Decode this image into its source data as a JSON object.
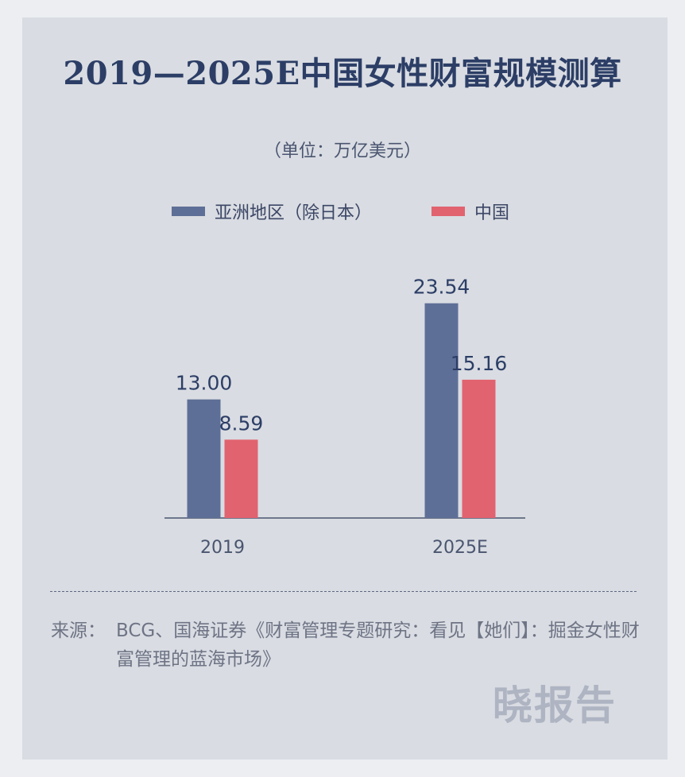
{
  "title": "2019—2025E中国女性财富规模测算",
  "unit": "（单位：万亿美元）",
  "legend": [
    {
      "label": "亚洲地区（除日本）",
      "color": "#5e6f97"
    },
    {
      "label": "中国",
      "color": "#e1636f"
    }
  ],
  "chart_data": {
    "type": "bar",
    "title": "2019—2025E中国女性财富规模测算",
    "categories": [
      "2019",
      "2025E"
    ],
    "series": [
      {
        "name": "亚洲地区（除日本）",
        "values": [
          13.0,
          23.54
        ],
        "labels": [
          "13.00",
          "23.54"
        ],
        "color": "#5e6f97"
      },
      {
        "name": "中国",
        "values": [
          8.59,
          15.16
        ],
        "labels": [
          "8.59",
          "15.16"
        ],
        "color": "#e1636f"
      }
    ],
    "xlabel": "",
    "ylabel": "",
    "ylim": [
      0,
      27
    ],
    "grid": false,
    "legend_position": "top-center"
  },
  "source": {
    "label": "来源：",
    "text": "BCG、国海证券《财富管理专题研究：看见【她们】：掘金女性财富管理的蓝海市场》"
  },
  "watermark": "晓报告"
}
